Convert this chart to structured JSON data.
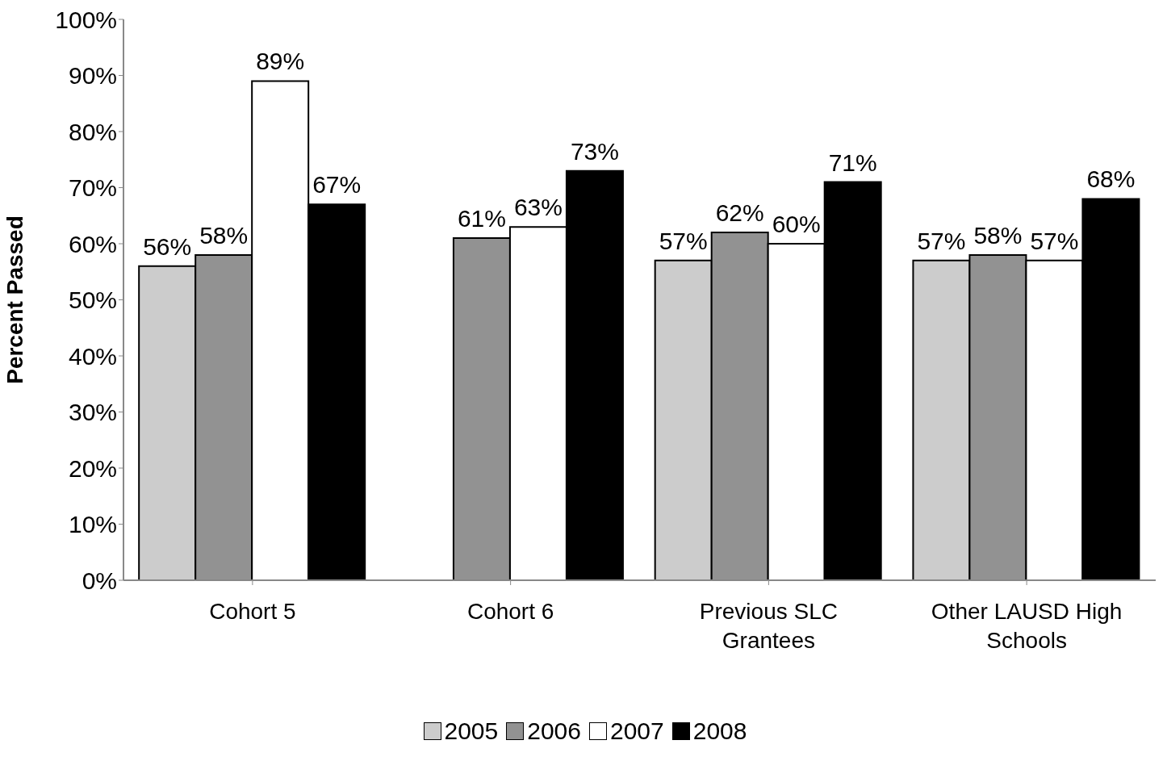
{
  "chart_data": {
    "type": "bar",
    "ylabel": "Percent Passed",
    "categories": [
      "Cohort 5",
      "Cohort 6",
      "Previous SLC Grantees",
      "Other LAUSD High Schools"
    ],
    "series": [
      {
        "name": "2005",
        "color": "#cccccc",
        "values": [
          56,
          null,
          57,
          57
        ],
        "value_labels": [
          "56%",
          null,
          "57%",
          "57%"
        ]
      },
      {
        "name": "2006",
        "color": "#929292",
        "values": [
          58,
          61,
          62,
          58
        ],
        "value_labels": [
          "58%",
          "61%",
          "62%",
          "58%"
        ]
      },
      {
        "name": "2007",
        "color": "#ffffff",
        "values": [
          89,
          63,
          60,
          57
        ],
        "value_labels": [
          "89%",
          "63%",
          "60%",
          "57%"
        ]
      },
      {
        "name": "2008",
        "color": "#000000",
        "values": [
          67,
          73,
          71,
          68
        ],
        "value_labels": [
          "67%",
          "73%",
          "71%",
          "68%"
        ]
      }
    ],
    "ylim": [
      0,
      100
    ],
    "yticks": [
      {
        "value": 0,
        "label": "0%"
      },
      {
        "value": 10,
        "label": "10%"
      },
      {
        "value": 20,
        "label": "20%"
      },
      {
        "value": 30,
        "label": "30%"
      },
      {
        "value": 40,
        "label": "40%"
      },
      {
        "value": 50,
        "label": "50%"
      },
      {
        "value": 60,
        "label": "60%"
      },
      {
        "value": 70,
        "label": "70%"
      },
      {
        "value": 80,
        "label": "80%"
      },
      {
        "value": 90,
        "label": "90%"
      },
      {
        "value": 100,
        "label": "100%"
      }
    ],
    "grid": false,
    "legend": "bottom"
  }
}
